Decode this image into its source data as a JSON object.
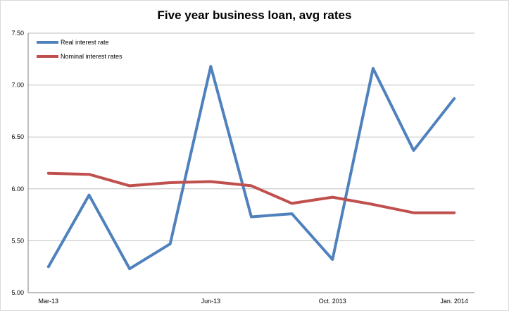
{
  "chart_data": {
    "type": "line",
    "title": "Five year business loan, avg rates",
    "x": [
      "Mar-13",
      "",
      "",
      "",
      "Jun-13",
      "",
      "",
      "Oct. 2013",
      "",
      "",
      "Jan. 2014"
    ],
    "x_tick_labels": [
      "Mar-13",
      "Jun-13",
      "Oct. 2013",
      "Jan. 2014"
    ],
    "ylim": [
      5.0,
      7.5
    ],
    "y_ticks": [
      "5.00",
      "5.50",
      "6.00",
      "6.50",
      "7.00",
      "7.50"
    ],
    "grid": true,
    "legend_position": "top-left",
    "series": [
      {
        "name": "Real interest rate",
        "color": "#4f81bd",
        "values": [
          5.25,
          5.94,
          5.23,
          5.47,
          7.18,
          5.73,
          5.76,
          5.32,
          7.16,
          6.37,
          6.87
        ]
      },
      {
        "name": "Nominal interest rates",
        "color": "#c0504d",
        "values": [
          6.15,
          6.14,
          6.03,
          6.06,
          6.07,
          6.03,
          5.86,
          5.92,
          5.85,
          5.77,
          5.77
        ]
      }
    ]
  }
}
